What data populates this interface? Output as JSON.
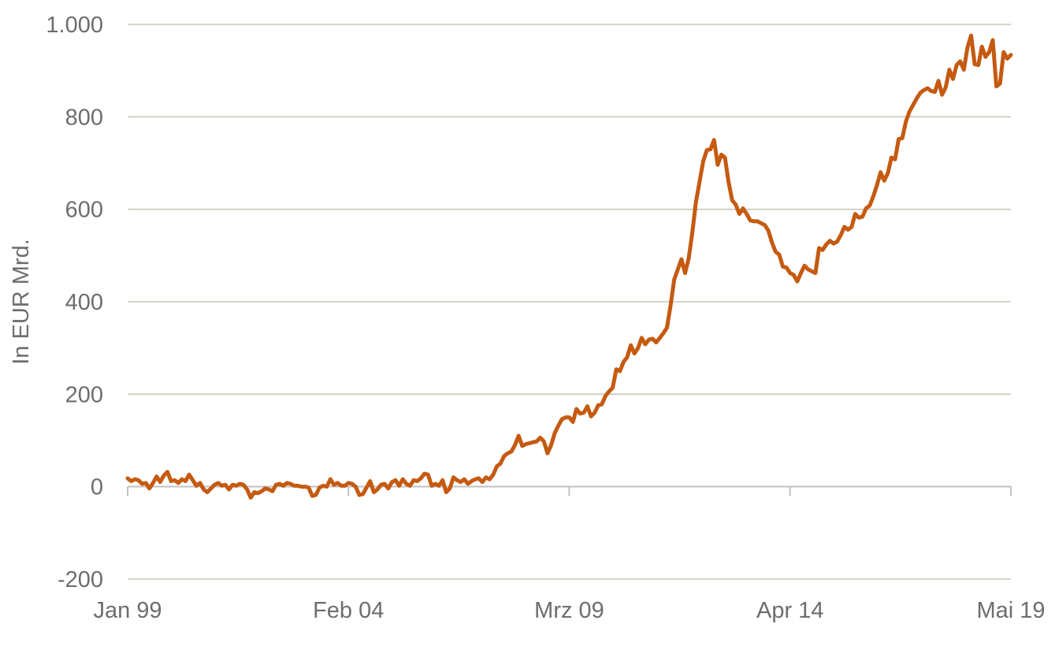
{
  "chart_data": {
    "type": "line",
    "title": "",
    "xlabel": "",
    "ylabel": "In EUR Mrd.",
    "ylim": [
      -200,
      1000
    ],
    "yticks": [
      1000,
      800,
      600,
      400,
      200,
      0,
      -200
    ],
    "ytick_labels": [
      "1.000",
      "800",
      "600",
      "400",
      "200",
      "0",
      "-200"
    ],
    "x_tick_labels": [
      "Jan 99",
      "Feb 04",
      "Mrz 09",
      "Apr 14",
      "Mai 19"
    ],
    "x_tick_index": [
      0,
      61,
      122,
      183,
      244
    ],
    "grid": true,
    "legend": "none",
    "color": "#c55a11",
    "series": [
      {
        "values": [
          18,
          12,
          16,
          14,
          6,
          8,
          -4,
          8,
          22,
          10,
          24,
          32,
          12,
          14,
          8,
          16,
          12,
          26,
          14,
          2,
          8,
          -6,
          -12,
          -4,
          4,
          8,
          2,
          4,
          -6,
          4,
          2,
          6,
          4,
          -6,
          -24,
          -12,
          -14,
          -10,
          -4,
          -6,
          -10,
          4,
          6,
          2,
          8,
          6,
          2,
          2,
          0,
          0,
          -2,
          -20,
          -18,
          -2,
          2,
          0,
          16,
          4,
          8,
          2,
          2,
          8,
          6,
          0,
          -18,
          -16,
          -2,
          12,
          -12,
          -6,
          4,
          6,
          -4,
          10,
          14,
          2,
          16,
          6,
          2,
          14,
          12,
          18,
          28,
          26,
          2,
          6,
          2,
          14,
          -12,
          -4,
          20,
          14,
          10,
          16,
          6,
          12,
          16,
          18,
          10,
          20,
          16,
          26,
          44,
          50,
          66,
          72,
          76,
          90,
          110,
          88,
          92,
          94,
          96,
          98,
          106,
          98,
          72,
          90,
          116,
          132,
          146,
          150,
          150,
          140,
          168,
          158,
          160,
          174,
          152,
          160,
          176,
          178,
          196,
          206,
          214,
          254,
          250,
          270,
          280,
          306,
          288,
          300,
          322,
          308,
          318,
          320,
          312,
          322,
          332,
          344,
          392,
          448,
          470,
          492,
          462,
          494,
          550,
          616,
          660,
          704,
          728,
          730,
          750,
          696,
          718,
          712,
          660,
          620,
          610,
          590,
          602,
          590,
          576,
          574,
          574,
          570,
          566,
          554,
          528,
          508,
          502,
          476,
          474,
          462,
          458,
          444,
          462,
          478,
          470,
          466,
          462,
          516,
          512,
          524,
          532,
          526,
          530,
          544,
          562,
          556,
          562,
          590,
          582,
          584,
          602,
          608,
          628,
          652,
          680,
          662,
          678,
          712,
          708,
          752,
          754,
          790,
          812,
          826,
          840,
          852,
          858,
          862,
          856,
          854,
          878,
          848,
          864,
          902,
          882,
          912,
          920,
          902,
          950,
          976,
          914,
          912,
          952,
          930,
          940,
          966,
          866,
          872,
          940,
          926,
          934
        ]
      }
    ]
  }
}
